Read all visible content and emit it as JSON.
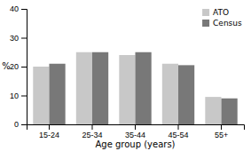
{
  "chart_data": {
    "type": "bar",
    "categories": [
      "15-24",
      "25-34",
      "35-44",
      "45-54",
      "55+"
    ],
    "series": [
      {
        "name": "ATO",
        "color": "#c8c8c8",
        "values": [
          20,
          25,
          24,
          21,
          9.5
        ]
      },
      {
        "name": "Census",
        "color": "#787878",
        "values": [
          21,
          25,
          25,
          20.5,
          9
        ]
      }
    ],
    "xlabel": "Age group (years)",
    "ylabel": "%",
    "ylim": [
      0,
      40
    ],
    "yticks": [
      0,
      10,
      20,
      30,
      40
    ],
    "legend": "upper right"
  }
}
